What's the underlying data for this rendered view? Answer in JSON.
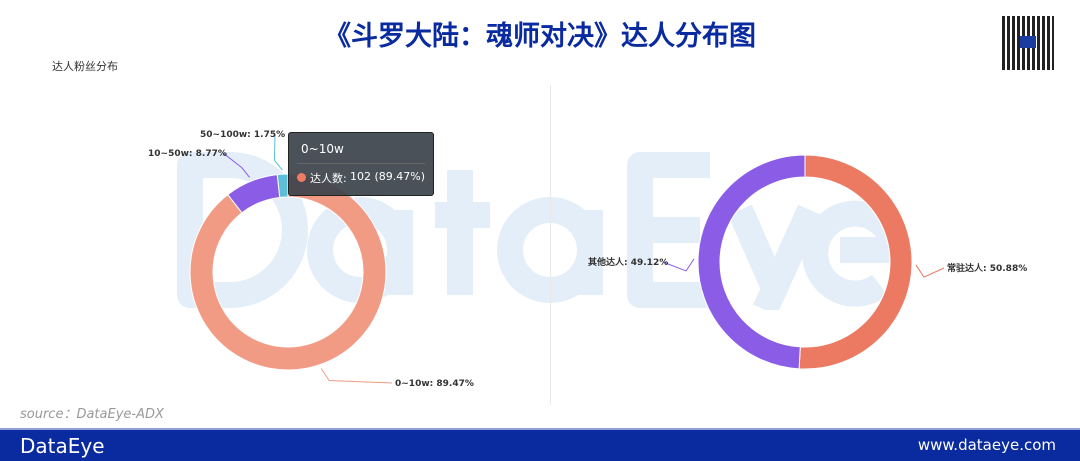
{
  "title": "《斗罗大陆：魂师对决》达人分布图",
  "subtitle": "达人粉丝分布",
  "source": "source：DataEye-ADX",
  "footer": {
    "logo": "DataEye",
    "url": "www.dataeye.com"
  },
  "watermark": "DataEye",
  "tooltip": {
    "title": "0~10w",
    "name": "达人数:",
    "value": "102 (89.47%)"
  },
  "chart_data": [
    {
      "type": "pie",
      "donut": true,
      "title": "达人粉丝分布",
      "slices": [
        {
          "name": "0~10w",
          "value": 89.47,
          "count": 102,
          "label": "0~10w: 89.47%",
          "color": "#f19a84"
        },
        {
          "name": "10~50w",
          "value": 8.77,
          "label": "10~50w: 8.77%",
          "color": "#8b5ce6"
        },
        {
          "name": "50~100w",
          "value": 1.75,
          "label": "50~100w: 1.75%",
          "color": "#5bc0d6"
        }
      ]
    },
    {
      "type": "pie",
      "donut": true,
      "slices": [
        {
          "name": "常驻达人",
          "value": 50.88,
          "label": "常驻达人: 50.88%",
          "color": "#ec7a63"
        },
        {
          "name": "其他达人",
          "value": 49.12,
          "label": "其他达人: 49.12%",
          "color": "#8b5ce6"
        }
      ]
    }
  ]
}
